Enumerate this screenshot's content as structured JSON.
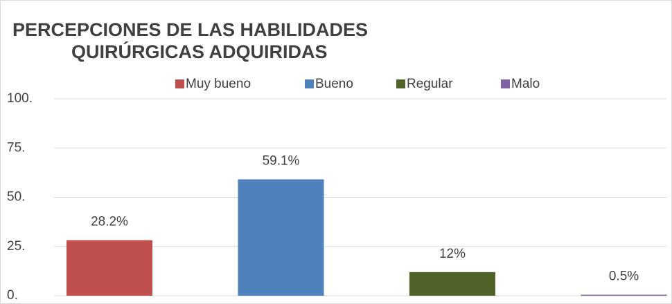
{
  "chart_data": {
    "type": "bar",
    "title": [
      "PERCEPCIONES DE LAS HABILIDADES",
      "QUIRÚRGICAS ADQUIRIDAS"
    ],
    "categories": [
      null
    ],
    "series": [
      {
        "name": "Muy bueno",
        "color": "#c0504d",
        "values": [
          28.2
        ],
        "value_labels": [
          "28.2%"
        ]
      },
      {
        "name": "Bueno",
        "color": "#4f81bd",
        "values": [
          59.1
        ],
        "value_labels": [
          "59.1%"
        ]
      },
      {
        "name": "Regular",
        "color": "#4f6228",
        "values": [
          12
        ],
        "value_labels": [
          "12%"
        ]
      },
      {
        "name": "Malo",
        "color": "#8064a2",
        "values": [
          0.5
        ],
        "value_labels": [
          "0.5%"
        ]
      }
    ],
    "ylim": [
      0,
      100
    ],
    "yticks": [
      {
        "value": 0,
        "label": "0."
      },
      {
        "value": 25,
        "label": "25."
      },
      {
        "value": 50,
        "label": "50."
      },
      {
        "value": 75,
        "label": "75."
      },
      {
        "value": 100,
        "label": "100."
      }
    ],
    "grid": true,
    "legend": "top"
  }
}
